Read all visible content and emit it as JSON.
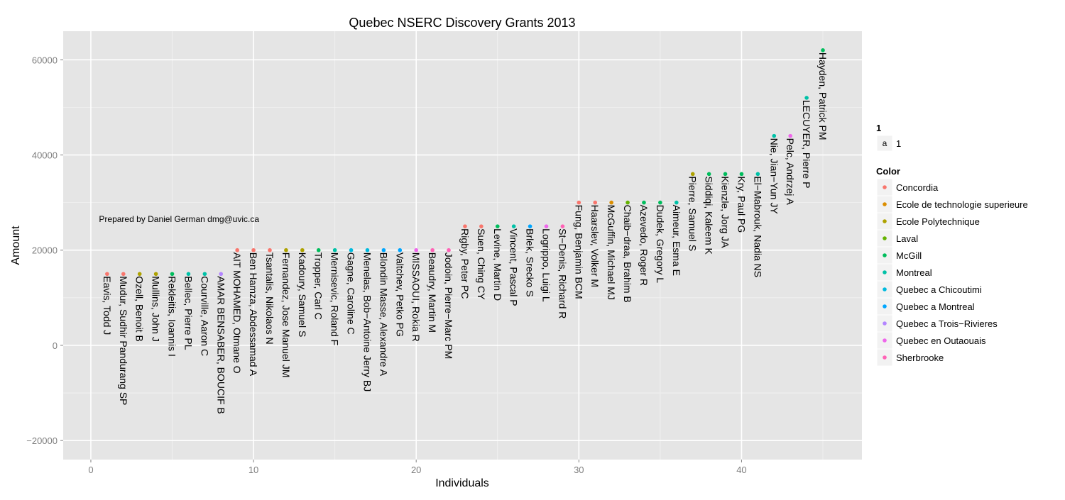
{
  "chart_data": {
    "type": "scatter",
    "title": "Quebec NSERC Discovery Grants 2013",
    "xlabel": "Individuals",
    "ylabel": "Amount",
    "xlim": [
      -1.7,
      47.4
    ],
    "ylim": [
      -24000,
      66000
    ],
    "x_ticks": [
      0,
      10,
      20,
      30,
      40
    ],
    "y_ticks": [
      -20000,
      0,
      20000,
      40000,
      60000
    ],
    "y_tick_labels": [
      "−20000",
      "0",
      "20000",
      "40000",
      "60000"
    ],
    "annotation": "Prepared by Daniel German dmg@uvic.ca",
    "annotation_pos": {
      "x": 0.5,
      "y": 26500
    },
    "grid": true,
    "legend_position": "right",
    "shape_legend": {
      "title": "1",
      "key": "a",
      "label": "1"
    },
    "color_legend": {
      "title": "Color",
      "entries": [
        {
          "label": "Concordia",
          "color": "#F8766D"
        },
        {
          "label": "Ecole de technologie superieure",
          "color": "#DB8E00"
        },
        {
          "label": "Ecole Polytechnique",
          "color": "#AEA200"
        },
        {
          "label": "Laval",
          "color": "#64B200"
        },
        {
          "label": "McGill",
          "color": "#00BD5C"
        },
        {
          "label": "Montreal",
          "color": "#00C1A7"
        },
        {
          "label": "Quebec a Chicoutimi",
          "color": "#00BADE"
        },
        {
          "label": "Quebec a Montreal",
          "color": "#00A6FF"
        },
        {
          "label": "Quebec a Trois−Rivieres",
          "color": "#B385FF"
        },
        {
          "label": "Quebec en Outaouais",
          "color": "#EF67EB"
        },
        {
          "label": "Sherbrooke",
          "color": "#FF63B6"
        }
      ]
    },
    "points": [
      {
        "x": 1,
        "y": 15000,
        "label": "Eavis, Todd J",
        "group": 0
      },
      {
        "x": 2,
        "y": 15000,
        "label": "Mudur, Sudhir Pandurang SP",
        "group": 0
      },
      {
        "x": 3,
        "y": 15000,
        "label": "Ozell, Benoit B",
        "group": 2
      },
      {
        "x": 4,
        "y": 15000,
        "label": "Mullins, John J",
        "group": 2
      },
      {
        "x": 5,
        "y": 15000,
        "label": "Rekleitis, Ioannis I",
        "group": 4
      },
      {
        "x": 6,
        "y": 15000,
        "label": "Bellec, Pierre PL",
        "group": 5
      },
      {
        "x": 7,
        "y": 15000,
        "label": "Courville, Aaron C",
        "group": 5
      },
      {
        "x": 8,
        "y": 15000,
        "label": "AMAR BENSABER, BOUCIF B",
        "group": 8
      },
      {
        "x": 9,
        "y": 20000,
        "label": "AIT MOHAMED, Otmane O",
        "group": 0
      },
      {
        "x": 10,
        "y": 20000,
        "label": "Ben Hamza, Abdessamad A",
        "group": 0
      },
      {
        "x": 11,
        "y": 20000,
        "label": "Tsantalis, Nikolaos N",
        "group": 0
      },
      {
        "x": 12,
        "y": 20000,
        "label": "Fernandez, Jose Manuel JM",
        "group": 2
      },
      {
        "x": 13,
        "y": 20000,
        "label": "Kadoury, Samuel S",
        "group": 2
      },
      {
        "x": 14,
        "y": 20000,
        "label": "Tropper, Carl C",
        "group": 4
      },
      {
        "x": 15,
        "y": 20000,
        "label": "Mernisevic, Roland F",
        "group": 5
      },
      {
        "x": 16,
        "y": 20000,
        "label": "Gagne, Caroline C",
        "group": 6
      },
      {
        "x": 17,
        "y": 20000,
        "label": "Menelas, Bob−Antoine Jerry BJ",
        "group": 6
      },
      {
        "x": 18,
        "y": 20000,
        "label": "Blondin Masse, Alexandre A",
        "group": 7
      },
      {
        "x": 19,
        "y": 20000,
        "label": "Valtchev, Petko PG",
        "group": 7
      },
      {
        "x": 20,
        "y": 20000,
        "label": "MISSAOUI, Rokia R",
        "group": 9
      },
      {
        "x": 21,
        "y": 20000,
        "label": "Beaudry, Martin M",
        "group": 10
      },
      {
        "x": 22,
        "y": 20000,
        "label": "Jodoin, Pierre−Marc PM",
        "group": 10
      },
      {
        "x": 23,
        "y": 25000,
        "label": "Rigby, Peter PC",
        "group": 0
      },
      {
        "x": 24,
        "y": 25000,
        "label": "Suen, Ching CY",
        "group": 0
      },
      {
        "x": 25,
        "y": 25000,
        "label": "Levine, Martin D",
        "group": 4
      },
      {
        "x": 26,
        "y": 25000,
        "label": "Vincent, Pascal P",
        "group": 5
      },
      {
        "x": 27,
        "y": 25000,
        "label": "Brlek, Srecko S",
        "group": 7
      },
      {
        "x": 28,
        "y": 25000,
        "label": "Logrippo, Luigi L",
        "group": 9
      },
      {
        "x": 29,
        "y": 25000,
        "label": "St−Denis, Richard R",
        "group": 10
      },
      {
        "x": 30,
        "y": 30000,
        "label": "Fung, Benjamin BCM",
        "group": 0
      },
      {
        "x": 31,
        "y": 30000,
        "label": "Haarslev, Volker M",
        "group": 0
      },
      {
        "x": 32,
        "y": 30000,
        "label": "McGuffin, Michael MJ",
        "group": 1
      },
      {
        "x": 33,
        "y": 30000,
        "label": "Chaib−draa, Brahim B",
        "group": 3
      },
      {
        "x": 34,
        "y": 30000,
        "label": "Azevedo, Roger R",
        "group": 4
      },
      {
        "x": 35,
        "y": 30000,
        "label": "Dudek, Gregory L",
        "group": 4
      },
      {
        "x": 36,
        "y": 30000,
        "label": "Aimeur, Esma E",
        "group": 5
      },
      {
        "x": 37,
        "y": 36000,
        "label": "Pierre, Samuel S",
        "group": 2
      },
      {
        "x": 38,
        "y": 36000,
        "label": "Siddiqi, Kaleem K",
        "group": 4
      },
      {
        "x": 39,
        "y": 36000,
        "label": "Kienzle, Jorg JA",
        "group": 4
      },
      {
        "x": 40,
        "y": 36000,
        "label": "Kry, Paul PG",
        "group": 4
      },
      {
        "x": 41,
        "y": 36000,
        "label": "El−Mabrouk, Nadia NS",
        "group": 5
      },
      {
        "x": 42,
        "y": 44000,
        "label": "Nie, Jian−Yun JY",
        "group": 5
      },
      {
        "x": 43,
        "y": 44000,
        "label": "Pelc, Andrzej A",
        "group": 9
      },
      {
        "x": 44,
        "y": 52000,
        "label": "LECUYER, Pierre P",
        "group": 5
      },
      {
        "x": 45,
        "y": 62000,
        "label": "Hayden, Patrick PM",
        "group": 4
      }
    ]
  }
}
